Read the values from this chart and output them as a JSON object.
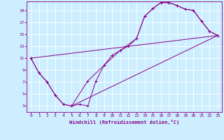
{
  "xlabel": "Windchill (Refroidissement éolien,°C)",
  "background_color": "#cceeff",
  "grid_color": "#ffffff",
  "line_color": "#880088",
  "xlim": [
    -0.5,
    23.5
  ],
  "ylim": [
    2.0,
    20.5
  ],
  "xticks": [
    0,
    1,
    2,
    3,
    4,
    5,
    6,
    7,
    8,
    9,
    10,
    11,
    12,
    13,
    14,
    15,
    16,
    17,
    18,
    19,
    20,
    21,
    22,
    23
  ],
  "yticks": [
    3,
    5,
    7,
    9,
    11,
    13,
    15,
    17,
    19
  ],
  "curve1_x": [
    0,
    1,
    2,
    3,
    4,
    5,
    6,
    7,
    8,
    9,
    10,
    11,
    12,
    13,
    14,
    15,
    16,
    17,
    18,
    19,
    20,
    21,
    22,
    23
  ],
  "curve1_y": [
    11.0,
    8.5,
    7.0,
    4.8,
    3.3,
    3.0,
    3.3,
    3.0,
    7.2,
    9.8,
    11.5,
    12.3,
    13.0,
    14.3,
    18.0,
    19.3,
    20.3,
    20.3,
    19.8,
    19.2,
    19.0,
    17.2,
    15.5,
    14.8
  ],
  "curve2_x": [
    0,
    1,
    2,
    3,
    4,
    5,
    7,
    9,
    11,
    13,
    14,
    15,
    16,
    17,
    18,
    19,
    20,
    21,
    22,
    23
  ],
  "curve2_y": [
    11.0,
    8.5,
    7.0,
    4.8,
    3.3,
    3.0,
    7.2,
    9.8,
    12.3,
    14.3,
    18.0,
    19.3,
    20.3,
    20.3,
    19.8,
    19.2,
    19.0,
    17.2,
    15.5,
    14.8
  ],
  "curve3_x": [
    0,
    23
  ],
  "curve3_y": [
    11.0,
    14.8
  ],
  "curve4_x": [
    5,
    23
  ],
  "curve4_y": [
    3.0,
    14.8
  ]
}
